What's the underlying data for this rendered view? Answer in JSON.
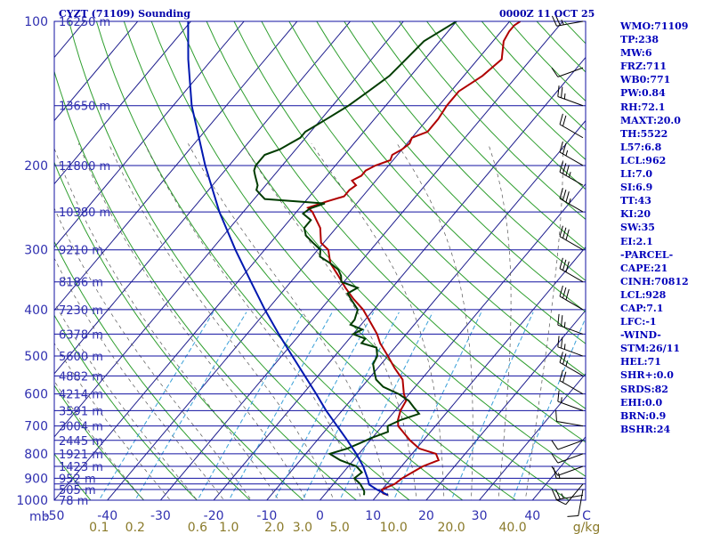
{
  "header": {
    "station": "CYZT (71109) Sounding",
    "time": "0000Z 11 OCT 25"
  },
  "index_lines": [
    "WMO:71109",
    "TP:238",
    "MW:6",
    "FRZ:711",
    "WB0:771",
    "PW:0.84",
    "RH:72.1",
    "MAXT:20.0",
    "TH:5522",
    "L57:6.8",
    "LCL:962",
    "LI:7.0",
    "SI:6.9",
    "TT:43",
    "KI:20",
    "SW:35",
    "EI:2.1",
    "-PARCEL-",
    "CAPE:21",
    "CINH:70812",
    "LCL:928",
    "CAP:7.1",
    "LFC:-1",
    "-WIND-",
    "STM:26/11",
    "HEL:71",
    "SHR+:0.0",
    "SRDS:82",
    "EHI:0.0",
    "BRN:0.9",
    "BSHR:24"
  ],
  "colors": {
    "isobar": "#1010a0",
    "isotherm": "#1c1c8c",
    "dry_adiabat": "#2e9e2e",
    "moist_adiabat": "#555555",
    "mixing_ratio": "#3aa0d8",
    "temperature": "#b00000",
    "dewpoint": "#003c00",
    "parcel": "#0018b0",
    "axis_text": "#3030b0",
    "mixing_text": "#8a7a2a",
    "wind_barb": "#000000"
  },
  "chart_data": {
    "type": "skew-t log-p sounding",
    "title": "CYZT (71109) Sounding",
    "valid_time": "0000Z 11 OCT 25",
    "pressure_unit": "mb",
    "pressure_range": [
      1000,
      100
    ],
    "temperature_range_at_1000mb": [
      -50,
      50
    ],
    "pressure_ticks": [
      100,
      200,
      300,
      400,
      500,
      600,
      700,
      800,
      900,
      1000
    ],
    "pressure_tick_labels": [
      "100",
      "200",
      "300",
      "400",
      "500",
      "600",
      "700",
      "800",
      "900",
      "1000"
    ],
    "pressure_axis_label": "mb",
    "isobars_mb": [
      1000,
      950,
      925,
      900,
      850,
      800,
      750,
      700,
      650,
      600,
      550,
      500,
      450,
      400,
      350,
      300,
      250,
      200,
      150,
      100
    ],
    "temperature_ticks": [
      -50,
      -40,
      -30,
      -20,
      -10,
      0,
      10,
      20,
      30,
      40
    ],
    "temperature_tick_labels": [
      "-50",
      "-40",
      "-30",
      "-20",
      "-10",
      "0",
      "10",
      "20",
      "30",
      "40"
    ],
    "temperature_axis_label": "C",
    "height_labels": [
      {
        "p": 100,
        "text": "16250 m"
      },
      {
        "p": 150,
        "text": "13650 m"
      },
      {
        "p": 200,
        "text": "11800 m"
      },
      {
        "p": 250,
        "text": "10380 m"
      },
      {
        "p": 300,
        "text": "9210 m"
      },
      {
        "p": 350,
        "text": "8186 m"
      },
      {
        "p": 400,
        "text": "7230 m"
      },
      {
        "p": 450,
        "text": "6378 m"
      },
      {
        "p": 500,
        "text": "5600 m"
      },
      {
        "p": 550,
        "text": "4882 m"
      },
      {
        "p": 600,
        "text": "4214 m"
      },
      {
        "p": 650,
        "text": "3591 m"
      },
      {
        "p": 700,
        "text": "3004 m"
      },
      {
        "p": 750,
        "text": "2445 m"
      },
      {
        "p": 800,
        "text": "1921 m"
      },
      {
        "p": 850,
        "text": "1423 m"
      },
      {
        "p": 900,
        "text": "952 m"
      },
      {
        "p": 950,
        "text": "505 m"
      },
      {
        "p": 1000,
        "text": "78 m"
      }
    ],
    "mixing_ratio_lines_gkg": [
      0.1,
      0.2,
      0.6,
      1.0,
      2.0,
      3.0,
      5.0,
      10.0,
      20.0,
      40.0
    ],
    "mixing_ratio_labels": [
      "0.1",
      "0.2",
      "0.6",
      "1.0",
      "2.0",
      "3.0",
      "5.0",
      "10.0",
      "20.0",
      "40.0"
    ],
    "mixing_ratio_unit": "g/kg",
    "series": [
      {
        "name": "temperature",
        "p": [
          976,
          968,
          950,
          925,
          900,
          875,
          850,
          825,
          800,
          780,
          750,
          700,
          680,
          650,
          620,
          600,
          560,
          530,
          500,
          470,
          450,
          430,
          400,
          380,
          360,
          340,
          320,
          300,
          290,
          270,
          250,
          245,
          238,
          232,
          225,
          220,
          215,
          210,
          205,
          200,
          195,
          190,
          185,
          180,
          175,
          170,
          160,
          150,
          140,
          130,
          120,
          110,
          105,
          102,
          100
        ],
        "t": [
          12,
          10.8,
          10,
          11.5,
          12.0,
          13.0,
          14.0,
          16.0,
          14.5,
          10.5,
          7.5,
          3.0,
          2.0,
          1.0,
          0.5,
          -1.0,
          -3.5,
          -6.8,
          -10.0,
          -13.5,
          -15.5,
          -18.0,
          -22.0,
          -25.5,
          -28.8,
          -32.0,
          -35.5,
          -38.0,
          -40.5,
          -43.0,
          -47.0,
          -48.5,
          -46.0,
          -43.5,
          -43.5,
          -43.0,
          -44.5,
          -43.5,
          -43.5,
          -42.5,
          -40.5,
          -41.0,
          -40.0,
          -39.5,
          -40.0,
          -38.0,
          -38.0,
          -38.5,
          -38.5,
          -36.5,
          -35.5,
          -38.0,
          -38.5,
          -38.5,
          -38.0
        ]
      },
      {
        "name": "dewpoint",
        "p": [
          976,
          960,
          950,
          925,
          900,
          875,
          850,
          825,
          800,
          780,
          760,
          740,
          720,
          700,
          680,
          660,
          640,
          620,
          600,
          580,
          560,
          540,
          520,
          500,
          480,
          470,
          460,
          450,
          440,
          430,
          420,
          400,
          380,
          370,
          360,
          350,
          340,
          330,
          320,
          310,
          300,
          290,
          280,
          270,
          260,
          252,
          246,
          240,
          235,
          230,
          225,
          220,
          215,
          210,
          205,
          200,
          195,
          190,
          185,
          180,
          175,
          170,
          165,
          160,
          150,
          140,
          130,
          120,
          110,
          100
        ],
        "t": [
          7.5,
          7.0,
          6.5,
          5.0,
          3.0,
          3.5,
          1.5,
          -2.5,
          -5.5,
          -3.0,
          -1.5,
          0.0,
          2.0,
          1.0,
          2.5,
          5.0,
          3.0,
          1.0,
          -2.0,
          -6.0,
          -8.5,
          -10.0,
          -11.5,
          -12.0,
          -13.5,
          -17.0,
          -17.0,
          -20.0,
          -19.0,
          -22.0,
          -22.0,
          -23.0,
          -26.0,
          -27.5,
          -26.5,
          -30.5,
          -31.5,
          -33.0,
          -35.5,
          -38.5,
          -39.5,
          -42.0,
          -44.5,
          -46.0,
          -46.0,
          -48.5,
          -48.0,
          -46.0,
          -58.0,
          -59.5,
          -61.0,
          -61.5,
          -62.5,
          -63.5,
          -64.5,
          -65.0,
          -65.0,
          -65.0,
          -63.0,
          -62.0,
          -61.0,
          -61.0,
          -60.0,
          -59.0,
          -57.0,
          -55.5,
          -54.0,
          -53.5,
          -53.0,
          -50.0
        ]
      },
      {
        "name": "parcel",
        "p": [
          976,
          950,
          928,
          900,
          850,
          800,
          750,
          700,
          650,
          600,
          550,
          500,
          450,
          400,
          350,
          300,
          250,
          200,
          150,
          120,
          100
        ],
        "t": [
          12,
          9.0,
          6.8,
          5.5,
          2.8,
          -0.5,
          -4.3,
          -8.5,
          -13.0,
          -17.5,
          -22.5,
          -28.0,
          -34.0,
          -40.5,
          -47.5,
          -55.5,
          -64.5,
          -74.5,
          -86.5,
          -94.5,
          -100.5
        ]
      }
    ],
    "wind_barbs": [
      {
        "p": 976,
        "dir": 260,
        "kt": 25
      },
      {
        "p": 950,
        "dir": 190,
        "kt": 10
      },
      {
        "p": 925,
        "dir": 220,
        "kt": 10
      },
      {
        "p": 900,
        "dir": 270,
        "kt": 15
      },
      {
        "p": 850,
        "dir": 250,
        "kt": 10
      },
      {
        "p": 800,
        "dir": 250,
        "kt": 10
      },
      {
        "p": 750,
        "dir": 250,
        "kt": 10
      },
      {
        "p": 700,
        "dir": 280,
        "kt": 10
      },
      {
        "p": 650,
        "dir": 290,
        "kt": 15
      },
      {
        "p": 600,
        "dir": 300,
        "kt": 20
      },
      {
        "p": 550,
        "dir": 300,
        "kt": 25
      },
      {
        "p": 500,
        "dir": 290,
        "kt": 25
      },
      {
        "p": 450,
        "dir": 290,
        "kt": 25
      },
      {
        "p": 400,
        "dir": 300,
        "kt": 30
      },
      {
        "p": 350,
        "dir": 300,
        "kt": 30
      },
      {
        "p": 300,
        "dir": 300,
        "kt": 30
      },
      {
        "p": 250,
        "dir": 300,
        "kt": 35
      },
      {
        "p": 220,
        "dir": 300,
        "kt": 35
      },
      {
        "p": 200,
        "dir": 300,
        "kt": 25
      },
      {
        "p": 175,
        "dir": 300,
        "kt": 20
      },
      {
        "p": 150,
        "dir": 290,
        "kt": 25
      },
      {
        "p": 125,
        "dir": 250,
        "kt": 10
      },
      {
        "p": 100,
        "dir": 260,
        "kt": 25
      }
    ]
  }
}
